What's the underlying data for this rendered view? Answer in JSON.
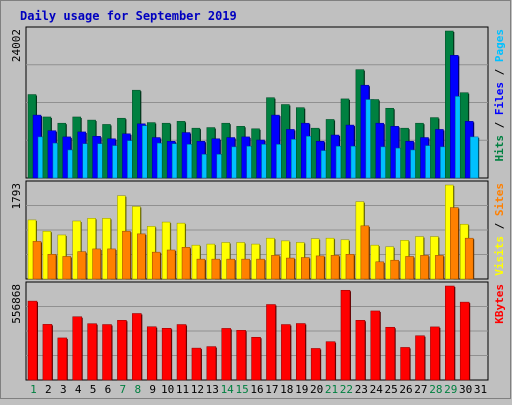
{
  "chart_data": [
    {
      "type": "bar",
      "title": "Daily usage for September 2019",
      "ylabel": "Pages / Files / Hits",
      "y_max_label": "24002",
      "categories": [
        "1",
        "2",
        "3",
        "4",
        "5",
        "6",
        "7",
        "8",
        "9",
        "10",
        "11",
        "12",
        "13",
        "14",
        "15",
        "16",
        "17",
        "18",
        "19",
        "20",
        "21",
        "22",
        "23",
        "24",
        "25",
        "26",
        "27",
        "28",
        "29",
        "30",
        "31"
      ],
      "weekend_days": [
        "1",
        "7",
        "8",
        "14",
        "15",
        "21",
        "22",
        "28",
        "29"
      ],
      "grid": true,
      "series": [
        {
          "name": "Hits",
          "color": "#008040",
          "values": [
            13400,
            9800,
            8800,
            9800,
            9300,
            8600,
            9600,
            14100,
            8900,
            8800,
            9100,
            8000,
            8100,
            8800,
            8300,
            7900,
            12900,
            11800,
            11300,
            8000,
            9400,
            12700,
            17400,
            12600,
            11200,
            8000,
            8800,
            9700,
            23600,
            13700,
            null
          ]
        },
        {
          "name": "Files",
          "color": "#0000ff",
          "values": [
            10100,
            7600,
            6600,
            7400,
            6700,
            6300,
            7100,
            8700,
            6500,
            5900,
            7300,
            5900,
            6300,
            6500,
            6600,
            6100,
            10100,
            7800,
            8800,
            5900,
            6900,
            8500,
            14900,
            8800,
            8300,
            5900,
            6500,
            7800,
            19700,
            9100,
            null
          ]
        },
        {
          "name": "Pages",
          "color": "#00c0ff",
          "values": [
            6600,
            5600,
            4500,
            5500,
            5500,
            5200,
            6000,
            8400,
            5600,
            5500,
            5400,
            3800,
            3800,
            5000,
            5100,
            5400,
            5400,
            6200,
            6700,
            4400,
            5100,
            5100,
            12600,
            5000,
            4800,
            4500,
            5200,
            5000,
            13100,
            6600,
            null
          ]
        }
      ]
    },
    {
      "type": "bar",
      "ylabel": "Sites / Visits",
      "y_max_label": "1793",
      "categories": [
        "1",
        "2",
        "3",
        "4",
        "5",
        "6",
        "7",
        "8",
        "9",
        "10",
        "11",
        "12",
        "13",
        "14",
        "15",
        "16",
        "17",
        "18",
        "19",
        "20",
        "21",
        "22",
        "23",
        "24",
        "25",
        "26",
        "27",
        "28",
        "29",
        "30",
        "31"
      ],
      "grid": true,
      "series": [
        {
          "name": "Visits",
          "color": "#ffff00",
          "values": [
            1100,
            890,
            820,
            1080,
            1130,
            1130,
            1550,
            1350,
            980,
            1060,
            1040,
            630,
            650,
            680,
            680,
            650,
            760,
            710,
            680,
            750,
            760,
            730,
            1440,
            630,
            600,
            720,
            790,
            790,
            1750,
            1020,
            null
          ]
        },
        {
          "name": "Sites",
          "color": "#ff8000",
          "values": [
            700,
            460,
            420,
            510,
            560,
            560,
            890,
            840,
            500,
            540,
            590,
            370,
            370,
            370,
            370,
            370,
            440,
            390,
            400,
            430,
            440,
            460,
            990,
            320,
            350,
            420,
            440,
            440,
            1330,
            760,
            null
          ]
        }
      ]
    },
    {
      "type": "bar",
      "ylabel": "KBytes",
      "y_max_label": "556868",
      "categories": [
        "1",
        "2",
        "3",
        "4",
        "5",
        "6",
        "7",
        "8",
        "9",
        "10",
        "11",
        "12",
        "13",
        "14",
        "15",
        "16",
        "17",
        "18",
        "19",
        "20",
        "21",
        "22",
        "23",
        "24",
        "25",
        "26",
        "27",
        "28",
        "29",
        "30",
        "31"
      ],
      "grid": true,
      "series": [
        {
          "name": "KBytes",
          "color": "#ff0000",
          "values": [
            465000,
            328000,
            248000,
            373000,
            332000,
            327000,
            352000,
            392000,
            314000,
            305000,
            327000,
            188000,
            197000,
            304000,
            293000,
            252000,
            445000,
            327000,
            333000,
            186000,
            226000,
            529000,
            352000,
            407000,
            311000,
            192000,
            261000,
            313000,
            554000,
            459000,
            null
          ]
        }
      ]
    }
  ]
}
